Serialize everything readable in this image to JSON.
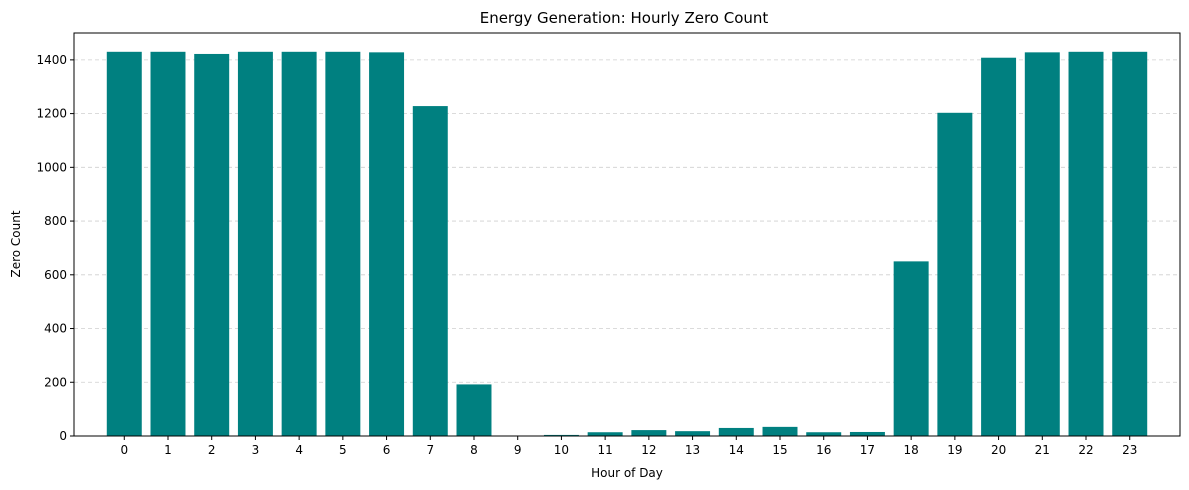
{
  "chart_data": {
    "type": "bar",
    "title": "Energy Generation: Hourly Zero Count",
    "xlabel": "Hour of Day",
    "ylabel": "Zero Count",
    "categories": [
      "0",
      "1",
      "2",
      "3",
      "4",
      "5",
      "6",
      "7",
      "8",
      "9",
      "10",
      "11",
      "12",
      "13",
      "14",
      "15",
      "16",
      "17",
      "18",
      "19",
      "20",
      "21",
      "22",
      "23"
    ],
    "values": [
      1430,
      1430,
      1422,
      1430,
      1430,
      1430,
      1428,
      1228,
      192,
      0,
      4,
      14,
      22,
      18,
      30,
      34,
      14,
      15,
      650,
      1203,
      1408,
      1428,
      1430,
      1430
    ],
    "ylim": [
      0,
      1500
    ],
    "yticks": [
      0,
      200,
      400,
      600,
      800,
      1000,
      1200,
      1400
    ],
    "grid": "y-dashed",
    "bar_color": "#008080"
  }
}
